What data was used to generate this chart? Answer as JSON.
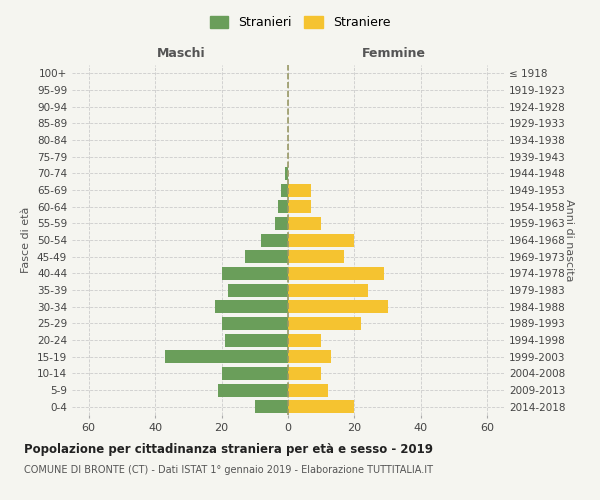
{
  "age_groups": [
    "0-4",
    "5-9",
    "10-14",
    "15-19",
    "20-24",
    "25-29",
    "30-34",
    "35-39",
    "40-44",
    "45-49",
    "50-54",
    "55-59",
    "60-64",
    "65-69",
    "70-74",
    "75-79",
    "80-84",
    "85-89",
    "90-94",
    "95-99",
    "100+"
  ],
  "birth_years": [
    "2014-2018",
    "2009-2013",
    "2004-2008",
    "1999-2003",
    "1994-1998",
    "1989-1993",
    "1984-1988",
    "1979-1983",
    "1974-1978",
    "1969-1973",
    "1964-1968",
    "1959-1963",
    "1954-1958",
    "1949-1953",
    "1944-1948",
    "1939-1943",
    "1934-1938",
    "1929-1933",
    "1924-1928",
    "1919-1923",
    "≤ 1918"
  ],
  "maschi": [
    10,
    21,
    20,
    37,
    19,
    20,
    22,
    18,
    20,
    13,
    8,
    4,
    3,
    2,
    1,
    0,
    0,
    0,
    0,
    0,
    0
  ],
  "femmine": [
    20,
    12,
    10,
    13,
    10,
    22,
    30,
    24,
    29,
    17,
    20,
    10,
    7,
    7,
    0,
    0,
    0,
    0,
    0,
    0,
    0
  ],
  "color_maschi": "#6a9e5a",
  "color_femmine": "#f5c330",
  "title_main": "Popolazione per cittadinanza straniera per età e sesso - 2019",
  "title_sub": "COMUNE DI BRONTE (CT) - Dati ISTAT 1° gennaio 2019 - Elaborazione TUTTITALIA.IT",
  "xlabel_left": "Maschi",
  "xlabel_right": "Femmine",
  "ylabel_left": "Fasce di età",
  "ylabel_right": "Anni di nascita",
  "legend_maschi": "Stranieri",
  "legend_femmine": "Straniere",
  "xlim": 65,
  "background_color": "#f5f5f0",
  "grid_color": "#cccccc",
  "dashed_line_color": "#999966"
}
